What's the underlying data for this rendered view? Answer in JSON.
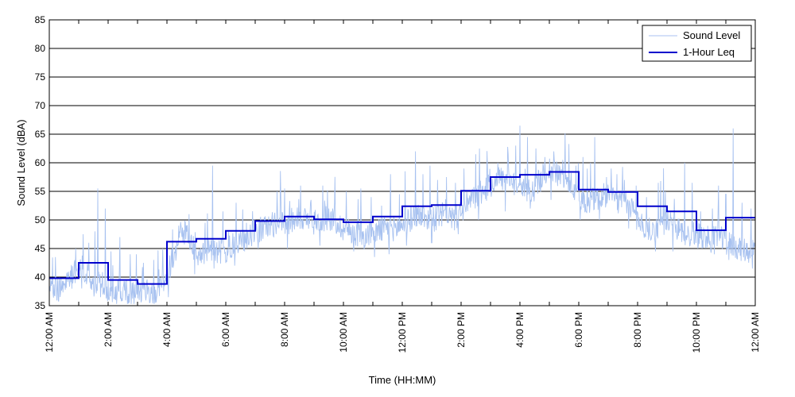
{
  "chart_data": {
    "type": "line",
    "title": "",
    "xlabel": "Time (HH:MM)",
    "ylabel": "Sound Level (dBA)",
    "xlim": [
      0,
      24
    ],
    "ylim": [
      35,
      85
    ],
    "x_unit": "hours since 12:00 AM",
    "grid": "horizontal",
    "legend_position": "top-right",
    "x_ticks": [
      {
        "value": 0,
        "label": "12:00 AM"
      },
      {
        "value": 2,
        "label": "2:00 AM"
      },
      {
        "value": 4,
        "label": "4:00 AM"
      },
      {
        "value": 6,
        "label": "6:00 AM"
      },
      {
        "value": 8,
        "label": "8:00 AM"
      },
      {
        "value": 10,
        "label": "10:00 AM"
      },
      {
        "value": 12,
        "label": "12:00 PM"
      },
      {
        "value": 14,
        "label": "2:00 PM"
      },
      {
        "value": 16,
        "label": "4:00 PM"
      },
      {
        "value": 18,
        "label": "6:00 PM"
      },
      {
        "value": 20,
        "label": "8:00 PM"
      },
      {
        "value": 22,
        "label": "10:00 PM"
      },
      {
        "value": 24,
        "label": "12:00 AM"
      }
    ],
    "y_ticks": [
      35,
      40,
      45,
      50,
      55,
      60,
      65,
      70,
      75,
      80,
      85
    ],
    "series": [
      {
        "name": "Sound Level",
        "color": "#a8c2f0",
        "x": [
          0,
          0.25,
          0.5,
          0.75,
          1,
          1.25,
          1.5,
          1.75,
          2,
          2.25,
          2.5,
          2.75,
          3,
          3.25,
          3.5,
          3.75,
          4,
          4.25,
          4.5,
          4.75,
          5,
          5.25,
          5.5,
          5.75,
          6,
          6.25,
          6.5,
          6.75,
          7,
          7.25,
          7.5,
          7.75,
          8,
          8.25,
          8.5,
          8.75,
          9,
          9.25,
          9.5,
          9.75,
          10,
          10.25,
          10.5,
          10.75,
          11,
          11.25,
          11.5,
          11.75,
          12,
          12.25,
          12.5,
          12.75,
          13,
          13.25,
          13.5,
          13.75,
          14,
          14.25,
          14.5,
          14.75,
          15,
          15.25,
          15.5,
          15.75,
          16,
          16.25,
          16.5,
          16.75,
          17,
          17.25,
          17.5,
          17.75,
          18,
          18.25,
          18.5,
          18.75,
          19,
          19.25,
          19.5,
          19.75,
          20,
          20.25,
          20.5,
          20.75,
          21,
          21.25,
          21.5,
          21.75,
          22,
          22.25,
          22.5,
          22.75,
          23,
          23.25,
          23.5,
          23.75,
          24
        ],
        "values": [
          38.5,
          37.5,
          39.0,
          40.0,
          42.0,
          41.0,
          38.5,
          39.0,
          37.5,
          37.0,
          38.0,
          37.0,
          37.5,
          37.5,
          37.0,
          38.0,
          40.5,
          44.0,
          48.0,
          47.0,
          44.0,
          44.5,
          45.0,
          44.5,
          44.5,
          45.5,
          46.0,
          47.0,
          48.0,
          48.5,
          49.0,
          49.5,
          49.0,
          50.0,
          50.5,
          50.0,
          49.5,
          50.0,
          50.5,
          49.5,
          48.5,
          48.0,
          47.5,
          47.0,
          48.0,
          48.0,
          48.5,
          48.5,
          49.0,
          50.0,
          51.0,
          50.5,
          50.0,
          50.5,
          51.5,
          50.0,
          51.5,
          53.0,
          54.0,
          55.0,
          56.0,
          57.5,
          57.0,
          56.0,
          56.5,
          55.0,
          55.5,
          57.5,
          59.0,
          58.0,
          57.5,
          56.0,
          54.0,
          53.0,
          53.5,
          54.0,
          54.5,
          53.5,
          53.0,
          52.5,
          50.0,
          48.5,
          48.0,
          49.0,
          50.0,
          48.5,
          48.0,
          47.0,
          48.0,
          47.0,
          46.5,
          47.0,
          46.0,
          45.5,
          45.0,
          44.5,
          45.0
        ],
        "peaks": [
          [
            0.2,
            43.5
          ],
          [
            0.9,
            45
          ],
          [
            1.15,
            47.5
          ],
          [
            1.35,
            46
          ],
          [
            1.55,
            48
          ],
          [
            1.65,
            55.5
          ],
          [
            1.9,
            52
          ],
          [
            2.1,
            44.5
          ],
          [
            2.4,
            47
          ],
          [
            2.75,
            44
          ],
          [
            3.2,
            42.5
          ],
          [
            3.55,
            43
          ],
          [
            3.85,
            45
          ],
          [
            4.4,
            49
          ],
          [
            4.75,
            51
          ],
          [
            4.95,
            54.5
          ],
          [
            5.3,
            49.5
          ],
          [
            5.55,
            59.5
          ],
          [
            5.9,
            51.5
          ],
          [
            6.35,
            53
          ],
          [
            6.7,
            49.5
          ],
          [
            7.0,
            60.5
          ],
          [
            7.4,
            54
          ],
          [
            7.75,
            55
          ],
          [
            8.0,
            55.5
          ],
          [
            8.55,
            56
          ],
          [
            8.9,
            53.5
          ],
          [
            9.3,
            56
          ],
          [
            9.7,
            53
          ],
          [
            10.1,
            55
          ],
          [
            10.6,
            55.5
          ],
          [
            10.95,
            54
          ],
          [
            11.3,
            52.5
          ],
          [
            11.6,
            58
          ],
          [
            11.9,
            54.5
          ],
          [
            12.1,
            58.5
          ],
          [
            12.45,
            62
          ],
          [
            12.7,
            58
          ],
          [
            12.95,
            59.5
          ],
          [
            13.2,
            57
          ],
          [
            13.5,
            57.5
          ],
          [
            13.8,
            56.5
          ],
          [
            14.1,
            59
          ],
          [
            14.5,
            61.5
          ],
          [
            14.9,
            59
          ],
          [
            15.25,
            60
          ],
          [
            15.6,
            61.5
          ],
          [
            15.85,
            63
          ],
          [
            16.0,
            66.5
          ],
          [
            16.25,
            64.5
          ],
          [
            16.55,
            62.5
          ],
          [
            16.85,
            61
          ],
          [
            17.15,
            62
          ],
          [
            17.45,
            60.5
          ],
          [
            17.9,
            59.5
          ],
          [
            18.15,
            61
          ],
          [
            18.4,
            60
          ],
          [
            18.55,
            64.5
          ],
          [
            18.95,
            57.5
          ],
          [
            19.1,
            59
          ],
          [
            19.3,
            58
          ],
          [
            19.55,
            57
          ],
          [
            19.95,
            56
          ],
          [
            20.3,
            54
          ],
          [
            20.7,
            56.5
          ],
          [
            20.95,
            55
          ],
          [
            21.2,
            54
          ],
          [
            21.6,
            60
          ],
          [
            21.85,
            56.5
          ],
          [
            22.15,
            51.5
          ],
          [
            22.55,
            52
          ],
          [
            22.75,
            56
          ],
          [
            23.0,
            54.5
          ],
          [
            23.25,
            66
          ],
          [
            23.55,
            53
          ],
          [
            23.85,
            52
          ]
        ],
        "dips": [
          [
            0.3,
            36
          ],
          [
            1.1,
            38
          ],
          [
            1.75,
            36.5
          ],
          [
            2.25,
            36
          ],
          [
            2.6,
            36
          ],
          [
            3.05,
            36
          ],
          [
            3.6,
            35.5
          ],
          [
            4.05,
            36.5
          ],
          [
            4.95,
            40.5
          ],
          [
            5.6,
            41.5
          ],
          [
            6.3,
            42
          ],
          [
            7.1,
            45
          ],
          [
            8.1,
            45
          ],
          [
            9.2,
            45.5
          ],
          [
            10.35,
            44.5
          ],
          [
            11.05,
            43.5
          ],
          [
            11.55,
            44
          ],
          [
            12.15,
            45.5
          ],
          [
            13.0,
            46
          ],
          [
            13.9,
            47.5
          ],
          [
            14.6,
            50
          ],
          [
            15.5,
            51.5
          ],
          [
            16.35,
            52
          ],
          [
            17.05,
            53.5
          ],
          [
            18.05,
            50
          ],
          [
            18.7,
            50
          ],
          [
            19.7,
            48.5
          ],
          [
            20.6,
            44.5
          ],
          [
            21.2,
            44.5
          ],
          [
            22.05,
            45
          ],
          [
            22.6,
            44
          ],
          [
            23.1,
            43
          ],
          [
            23.9,
            41.5
          ]
        ]
      },
      {
        "name": "1-Hour Leq",
        "color": "#0000cc",
        "step": "post",
        "x": [
          0,
          1,
          2,
          3,
          4,
          5,
          6,
          7,
          8,
          9,
          10,
          11,
          12,
          13,
          14,
          15,
          16,
          17,
          18,
          19,
          20,
          21,
          22,
          23
        ],
        "values": [
          39.8,
          42.5,
          39.5,
          38.8,
          46.2,
          46.7,
          48.1,
          49.8,
          50.6,
          50.1,
          49.6,
          50.6,
          52.4,
          52.6,
          55.1,
          57.5,
          57.9,
          58.4,
          55.3,
          54.9,
          52.4,
          51.5,
          48.2,
          50.4
        ]
      }
    ]
  }
}
